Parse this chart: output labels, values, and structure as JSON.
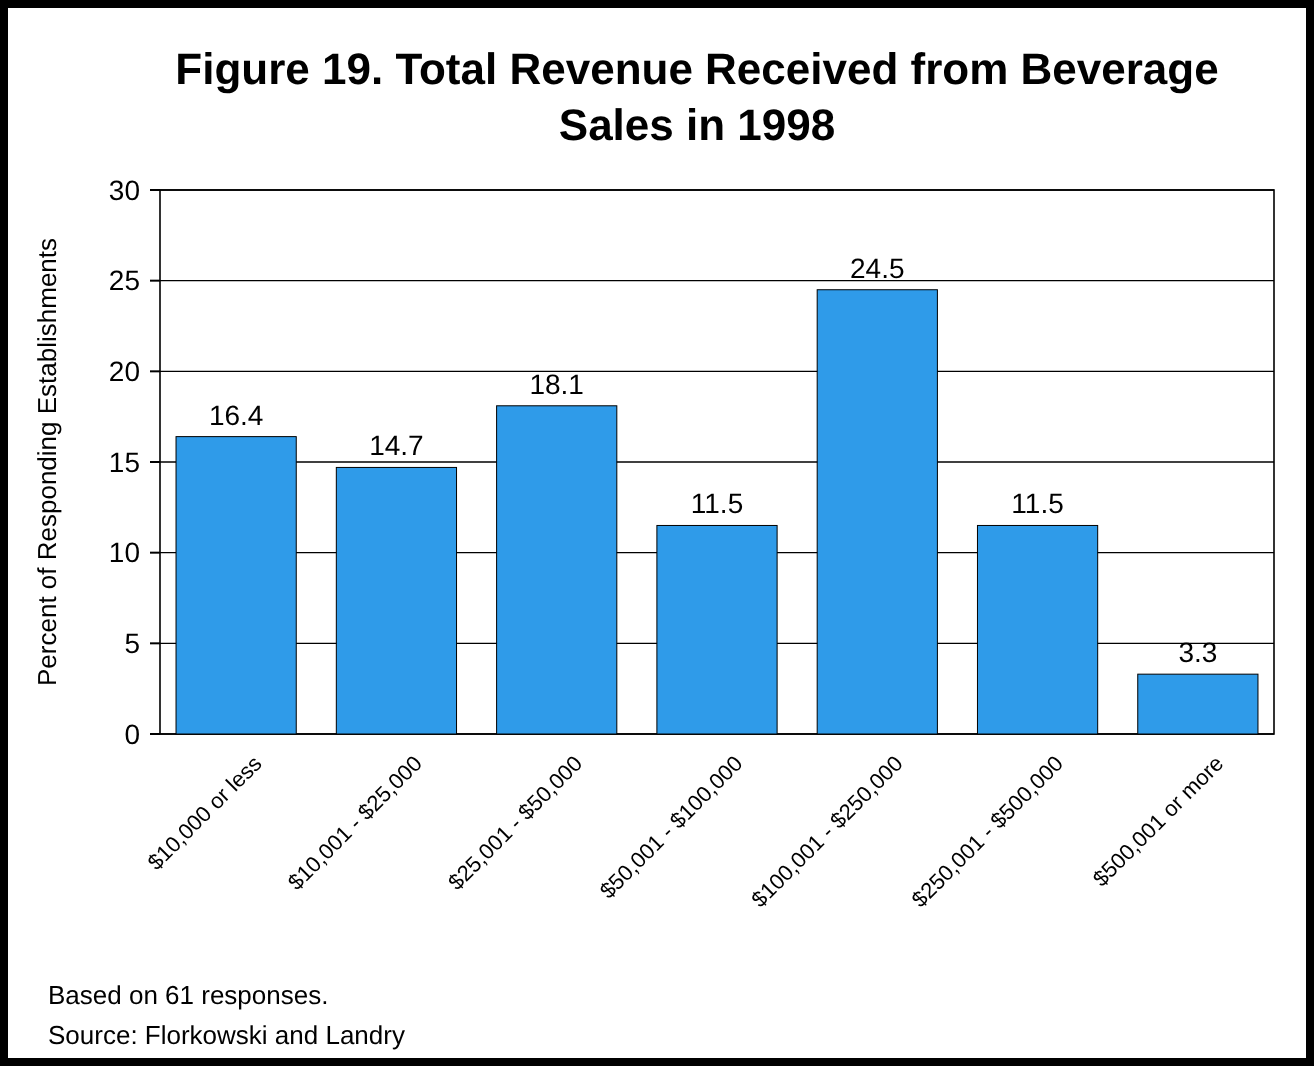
{
  "chart_data": {
    "type": "bar",
    "title": "Figure 19. Total Revenue Received from Beverage Sales in 1998",
    "ylabel": "Percent of Responding Establishments",
    "categories": [
      "$10,000 or less",
      "$10,001 - $25,000",
      "$25,001 - $50,000",
      "$50,001 - $100,000",
      "$100,001 - $250,000",
      "$250,001 - $500,000",
      "$500,001 or more"
    ],
    "values": [
      16.4,
      14.7,
      18.1,
      11.5,
      24.5,
      11.5,
      3.3
    ],
    "color": "#2f9be9",
    "ylim": [
      0,
      30
    ],
    "yticks": [
      0,
      5,
      10,
      15,
      20,
      25,
      30
    ],
    "grid": "y",
    "data_labels": true,
    "annotations": [
      "Based on 61 responses.",
      "Source: Florkowski and Landry"
    ]
  }
}
